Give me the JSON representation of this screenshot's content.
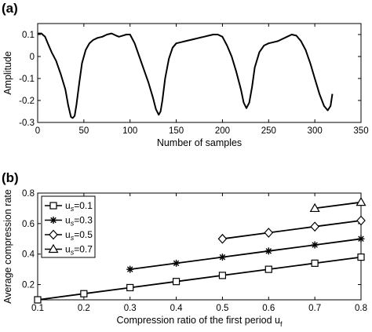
{
  "chart_data": [
    {
      "panel_label": "(a)",
      "type": "line",
      "xlabel": "Number of samples",
      "ylabel": "Amplitude",
      "xlim": [
        0,
        350
      ],
      "ylim": [
        -0.3,
        0.15
      ],
      "xticks": [
        0,
        50,
        100,
        150,
        200,
        250,
        300,
        350
      ],
      "yticks": [
        -0.3,
        -0.2,
        -0.1,
        0,
        0.1
      ],
      "ytick_labels": [
        "-0.3",
        "-0.2",
        "-0.1",
        "0",
        "0.1"
      ],
      "grid": false,
      "series": [
        {
          "color": "#000000",
          "x": [
            0,
            4,
            8,
            12,
            15,
            20,
            25,
            30,
            33,
            36,
            38,
            40,
            42,
            45,
            48,
            52,
            56,
            60,
            65,
            70,
            75,
            80,
            85,
            88,
            92,
            96,
            100,
            105,
            110,
            115,
            120,
            125,
            128,
            131,
            133,
            135,
            138,
            142,
            146,
            150,
            155,
            160,
            165,
            170,
            175,
            180,
            185,
            190,
            195,
            200,
            205,
            210,
            215,
            220,
            223,
            226,
            229,
            232,
            235,
            240,
            245,
            250,
            255,
            260,
            265,
            270,
            275,
            280,
            285,
            290,
            295,
            300,
            305,
            310,
            314,
            317,
            319
          ],
          "y": [
            0.105,
            0.105,
            0.09,
            0.05,
            0.02,
            -0.02,
            -0.08,
            -0.15,
            -0.22,
            -0.275,
            -0.28,
            -0.27,
            -0.22,
            -0.12,
            -0.03,
            0.03,
            0.06,
            0.075,
            0.085,
            0.09,
            0.1,
            0.105,
            0.095,
            0.09,
            0.095,
            0.1,
            0.1,
            0.06,
            0.0,
            -0.06,
            -0.12,
            -0.19,
            -0.24,
            -0.265,
            -0.25,
            -0.2,
            -0.1,
            -0.01,
            0.04,
            0.06,
            0.065,
            0.07,
            0.075,
            0.08,
            0.085,
            0.09,
            0.095,
            0.1,
            0.1,
            0.09,
            0.05,
            0.0,
            -0.07,
            -0.15,
            -0.21,
            -0.235,
            -0.21,
            -0.14,
            -0.05,
            0.02,
            0.05,
            0.06,
            0.065,
            0.07,
            0.08,
            0.09,
            0.1,
            0.095,
            0.07,
            0.03,
            -0.03,
            -0.1,
            -0.17,
            -0.225,
            -0.245,
            -0.225,
            -0.17
          ]
        }
      ]
    },
    {
      "panel_label": "(b)",
      "type": "line",
      "xlabel": "Compression ratio of the first period u",
      "xlabel_subscript": "f",
      "ylabel": "Average compression rate",
      "xlim": [
        0.1,
        0.8
      ],
      "ylim": [
        0.1,
        0.8
      ],
      "xticks": [
        0.1,
        0.2,
        0.3,
        0.4,
        0.5,
        0.6,
        0.7,
        0.8
      ],
      "yticks": [
        0.2,
        0.4,
        0.6,
        0.8
      ],
      "grid": false,
      "legend_placement": "top-left",
      "series": [
        {
          "name": "u",
          "name_subscript": "s",
          "name_suffix": "=0.1",
          "marker": "square",
          "x": [
            0.1,
            0.2,
            0.3,
            0.4,
            0.5,
            0.6,
            0.7,
            0.8
          ],
          "y": [
            0.1,
            0.14,
            0.18,
            0.22,
            0.26,
            0.3,
            0.34,
            0.38
          ]
        },
        {
          "name": "u",
          "name_subscript": "s",
          "name_suffix": "=0.3",
          "marker": "asterisk",
          "x": [
            0.3,
            0.4,
            0.5,
            0.6,
            0.7,
            0.8
          ],
          "y": [
            0.3,
            0.34,
            0.38,
            0.42,
            0.46,
            0.5
          ]
        },
        {
          "name": "u",
          "name_subscript": "s",
          "name_suffix": "=0.5",
          "marker": "diamond",
          "x": [
            0.5,
            0.6,
            0.7,
            0.8
          ],
          "y": [
            0.5,
            0.54,
            0.58,
            0.62
          ]
        },
        {
          "name": "u",
          "name_subscript": "s",
          "name_suffix": "=0.7",
          "marker": "triangle",
          "x": [
            0.7,
            0.8
          ],
          "y": [
            0.7,
            0.74
          ]
        }
      ]
    }
  ]
}
